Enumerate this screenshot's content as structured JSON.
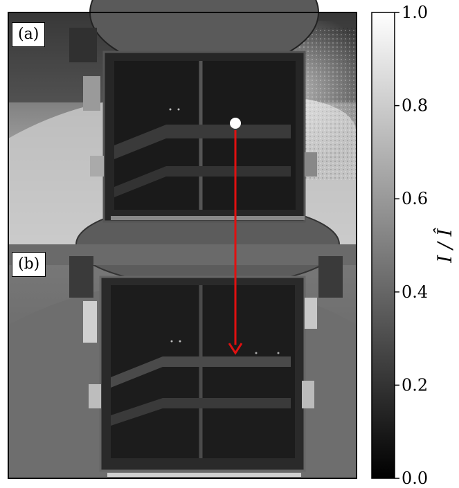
{
  "figure": {
    "panels": [
      {
        "label": "(a)"
      },
      {
        "label": "(b)"
      }
    ],
    "colorbar": {
      "label": "I / Î",
      "ticks": [
        "0.0",
        "0.2",
        "0.4",
        "0.6",
        "0.8",
        "1.0"
      ],
      "range": [
        0.0,
        1.0
      ],
      "colormap": "grayscale"
    },
    "arrow_color": "#e01010"
  }
}
